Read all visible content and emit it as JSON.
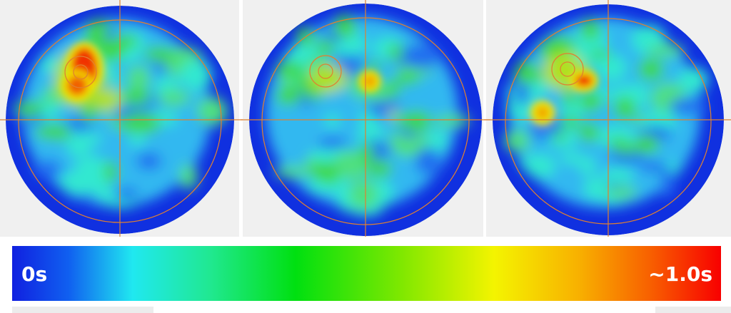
{
  "colorbar": {
    "min_label": "0s",
    "max_label": "~1.0s"
  }
}
